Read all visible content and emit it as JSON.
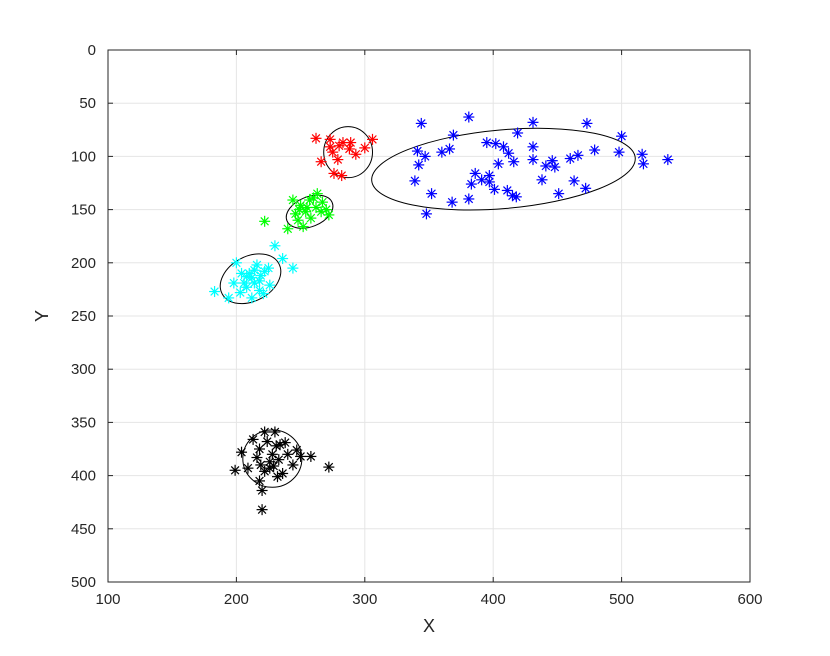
{
  "chart_data": {
    "type": "scatter",
    "title": "",
    "xlabel": "X",
    "ylabel": "Y",
    "xlim": [
      100,
      600
    ],
    "ylim": [
      0,
      500
    ],
    "y_reversed": true,
    "grid": true,
    "xticks": [
      100,
      200,
      300,
      400,
      500,
      600
    ],
    "yticks": [
      0,
      50,
      100,
      150,
      200,
      250,
      300,
      350,
      400,
      450,
      500
    ],
    "marker": "asterisk",
    "series": [
      {
        "color": "#0000ff",
        "points": [
          [
            344,
            69
          ],
          [
            369,
            80
          ],
          [
            381,
            63
          ],
          [
            402,
            88
          ],
          [
            419,
            78
          ],
          [
            431,
            68
          ],
          [
            473,
            69
          ],
          [
            500,
            81
          ],
          [
            341,
            95
          ],
          [
            347,
            100
          ],
          [
            360,
            96
          ],
          [
            366,
            93
          ],
          [
            395,
            87
          ],
          [
            408,
            91
          ],
          [
            416,
            105
          ],
          [
            431,
            91
          ],
          [
            448,
            110
          ],
          [
            466,
            99
          ],
          [
            479,
            94
          ],
          [
            498,
            96
          ],
          [
            516,
            98
          ],
          [
            536,
            103
          ],
          [
            517,
            107
          ],
          [
            342,
            108
          ],
          [
            339,
            123
          ],
          [
            352,
            135
          ],
          [
            368,
            143
          ],
          [
            383,
            126
          ],
          [
            391,
            122
          ],
          [
            397,
            118
          ],
          [
            404,
            107
          ],
          [
            411,
            132
          ],
          [
            418,
            138
          ],
          [
            431,
            103
          ],
          [
            441,
            109
          ],
          [
            460,
            102
          ],
          [
            463,
            123
          ],
          [
            451,
            135
          ],
          [
            472,
            130
          ],
          [
            348,
            154
          ],
          [
            381,
            140
          ],
          [
            401,
            131
          ],
          [
            415,
            137
          ],
          [
            446,
            104
          ],
          [
            397,
            124
          ],
          [
            386,
            116
          ],
          [
            412,
            97
          ],
          [
            438,
            122
          ]
        ]
      },
      {
        "color": "#ff0000",
        "points": [
          [
            262,
            83
          ],
          [
            273,
            84
          ],
          [
            283,
            87
          ],
          [
            289,
            87
          ],
          [
            306,
            84
          ],
          [
            266,
            105
          ],
          [
            275,
            96
          ],
          [
            280,
            90
          ],
          [
            288,
            93
          ],
          [
            300,
            92
          ],
          [
            279,
            103
          ],
          [
            276,
            116
          ],
          [
            282,
            118
          ],
          [
            293,
            98
          ],
          [
            273,
            91
          ]
        ]
      },
      {
        "color": "#00ff00",
        "points": [
          [
            222,
            161
          ],
          [
            240,
            168
          ],
          [
            248,
            160
          ],
          [
            252,
            166
          ],
          [
            255,
            148
          ],
          [
            257,
            141
          ],
          [
            260,
            139
          ],
          [
            263,
            135
          ],
          [
            266,
            152
          ],
          [
            270,
            150
          ],
          [
            272,
            155
          ],
          [
            246,
            154
          ],
          [
            250,
            146
          ],
          [
            258,
            158
          ],
          [
            262,
            148
          ],
          [
            267,
            143
          ],
          [
            244,
            141
          ],
          [
            254,
            152
          ],
          [
            249,
            150
          ]
        ]
      },
      {
        "color": "#00ffff",
        "points": [
          [
            183,
            227
          ],
          [
            194,
            233
          ],
          [
            198,
            219
          ],
          [
            204,
            210
          ],
          [
            208,
            223
          ],
          [
            212,
            233
          ],
          [
            218,
            217
          ],
          [
            221,
            229
          ],
          [
            225,
            205
          ],
          [
            230,
            184
          ],
          [
            236,
            196
          ],
          [
            244,
            205
          ],
          [
            200,
            200
          ],
          [
            206,
            219
          ],
          [
            210,
            210
          ],
          [
            214,
            219
          ],
          [
            216,
            202
          ],
          [
            219,
            212
          ],
          [
            222,
            208
          ],
          [
            226,
            221
          ],
          [
            212,
            214
          ],
          [
            203,
            228
          ],
          [
            218,
            226
          ],
          [
            208,
            213
          ],
          [
            214,
            207
          ]
        ]
      },
      {
        "color": "#000000",
        "points": [
          [
            199,
            395
          ],
          [
            204,
            378
          ],
          [
            209,
            393
          ],
          [
            213,
            366
          ],
          [
            216,
            383
          ],
          [
            218,
            375
          ],
          [
            220,
            432
          ],
          [
            220,
            414
          ],
          [
            222,
            359
          ],
          [
            224,
            368
          ],
          [
            226,
            387
          ],
          [
            228,
            380
          ],
          [
            230,
            359
          ],
          [
            232,
            401
          ],
          [
            234,
            371
          ],
          [
            236,
            398
          ],
          [
            238,
            369
          ],
          [
            240,
            380
          ],
          [
            244,
            390
          ],
          [
            247,
            376
          ],
          [
            250,
            382
          ],
          [
            258,
            382
          ],
          [
            272,
            392
          ],
          [
            229,
            391
          ],
          [
            222,
            396
          ],
          [
            218,
            405
          ],
          [
            231,
            372
          ],
          [
            233,
            385
          ],
          [
            226,
            393
          ],
          [
            219,
            390
          ]
        ]
      }
    ],
    "ellipses": [
      {
        "cx": 408,
        "cy": 112,
        "rx": 103,
        "ry": 37,
        "angle": -5
      },
      {
        "cx": 287,
        "cy": 96,
        "rx": 19,
        "ry": 24,
        "angle": 0
      },
      {
        "cx": 257,
        "cy": 152,
        "rx": 19,
        "ry": 14,
        "angle": -22
      },
      {
        "cx": 211,
        "cy": 215,
        "rx": 25,
        "ry": 21,
        "angle": -28
      },
      {
        "cx": 228,
        "cy": 384,
        "rx": 23,
        "ry": 27,
        "angle": 0
      }
    ]
  }
}
